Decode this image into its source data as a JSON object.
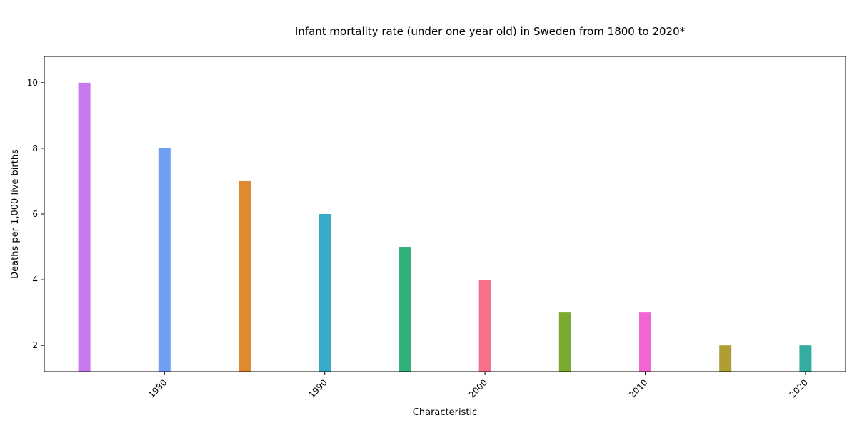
{
  "chart_data": {
    "type": "bar",
    "title": "Infant mortality rate (under one year old) in Sweden from 1800 to 2020*",
    "xlabel": "Characteristic",
    "ylabel": "Deaths per 1,000 live births",
    "x": [
      1975,
      1980,
      1985,
      1990,
      1995,
      2000,
      2005,
      2010,
      2015,
      2020
    ],
    "values": [
      10,
      8,
      7,
      6,
      5,
      4,
      3,
      3,
      2,
      2
    ],
    "colors": [
      "#c879f0",
      "#6f9ef2",
      "#de8a33",
      "#38a9c6",
      "#33b07a",
      "#f5708a",
      "#7aab30",
      "#f266d2",
      "#ae9d32",
      "#33ada2"
    ],
    "xticks": [
      1980,
      1990,
      2000,
      2010,
      2020
    ],
    "xtick_labels": [
      "1980",
      "1990",
      "2000",
      "2010",
      "2020"
    ],
    "yticks": [
      2,
      4,
      6,
      8,
      10
    ],
    "ytick_labels": [
      "2",
      "4",
      "6",
      "8",
      "10"
    ],
    "xlim": [
      1972.5,
      2022.5
    ],
    "ylim": [
      1.2,
      10.8
    ],
    "grid": false,
    "legend": "none"
  }
}
